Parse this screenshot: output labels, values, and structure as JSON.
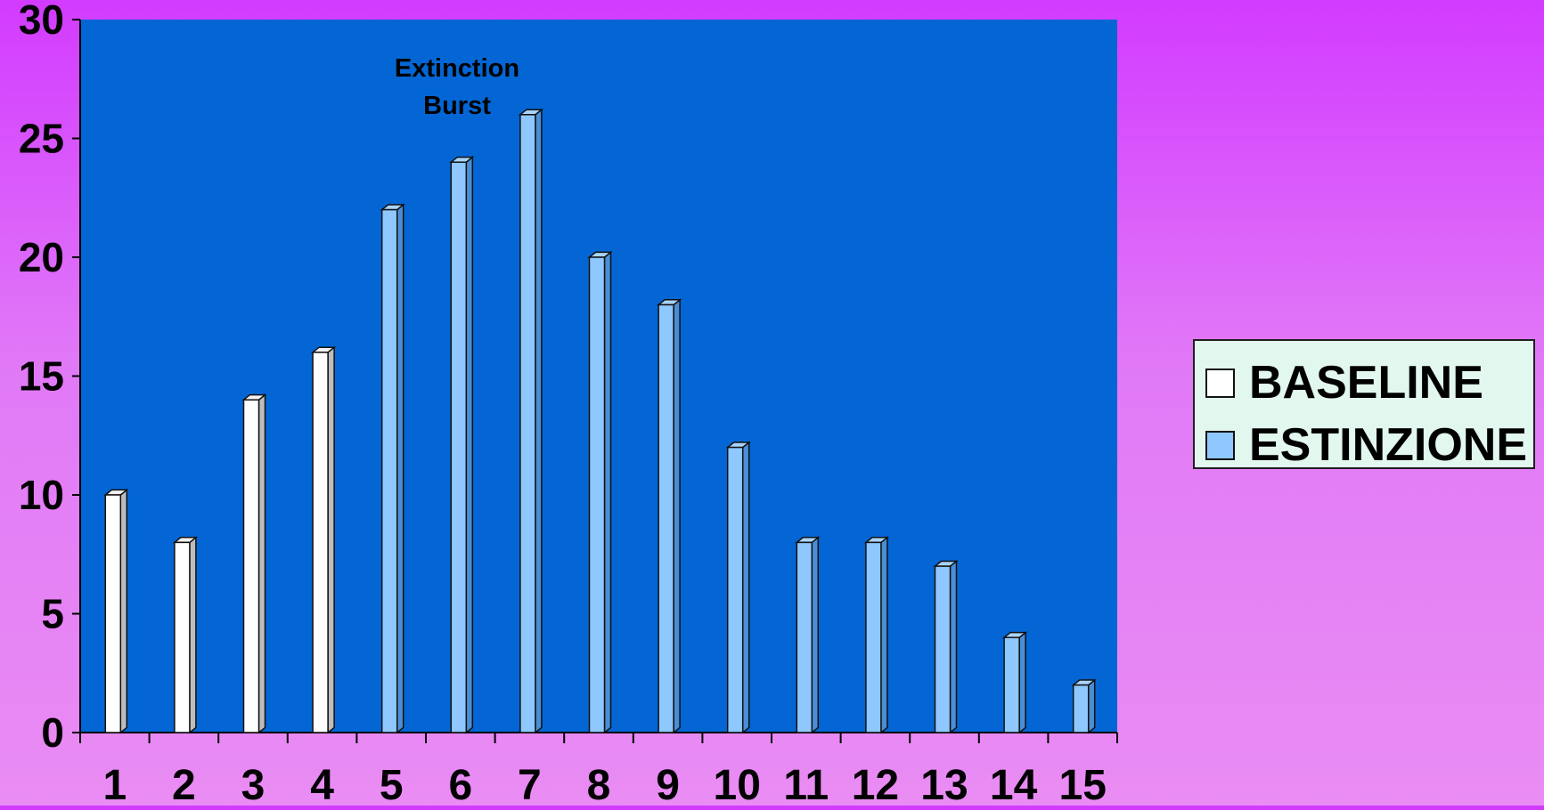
{
  "chart_data": {
    "type": "bar",
    "categories": [
      "1",
      "2",
      "3",
      "4",
      "5",
      "6",
      "7",
      "8",
      "9",
      "10",
      "11",
      "12",
      "13",
      "14",
      "15"
    ],
    "series": [
      {
        "name": "BASELINE",
        "values": [
          10,
          8,
          14,
          16,
          null,
          null,
          null,
          null,
          null,
          null,
          null,
          null,
          null,
          null,
          null
        ],
        "color": "#ffffff"
      },
      {
        "name": "ESTINZIONE",
        "values": [
          null,
          null,
          null,
          null,
          22,
          24,
          26,
          20,
          18,
          12,
          8,
          8,
          7,
          4,
          2
        ],
        "color": "#8ec8ff"
      }
    ],
    "yticks": [
      "0",
      "5",
      "10",
      "15",
      "20",
      "25",
      "30"
    ],
    "ylim": [
      0,
      30
    ],
    "annotation": {
      "line1": "Extinction",
      "line2": "Burst"
    },
    "legend_position": "right",
    "plot_background": "#0466d4"
  }
}
